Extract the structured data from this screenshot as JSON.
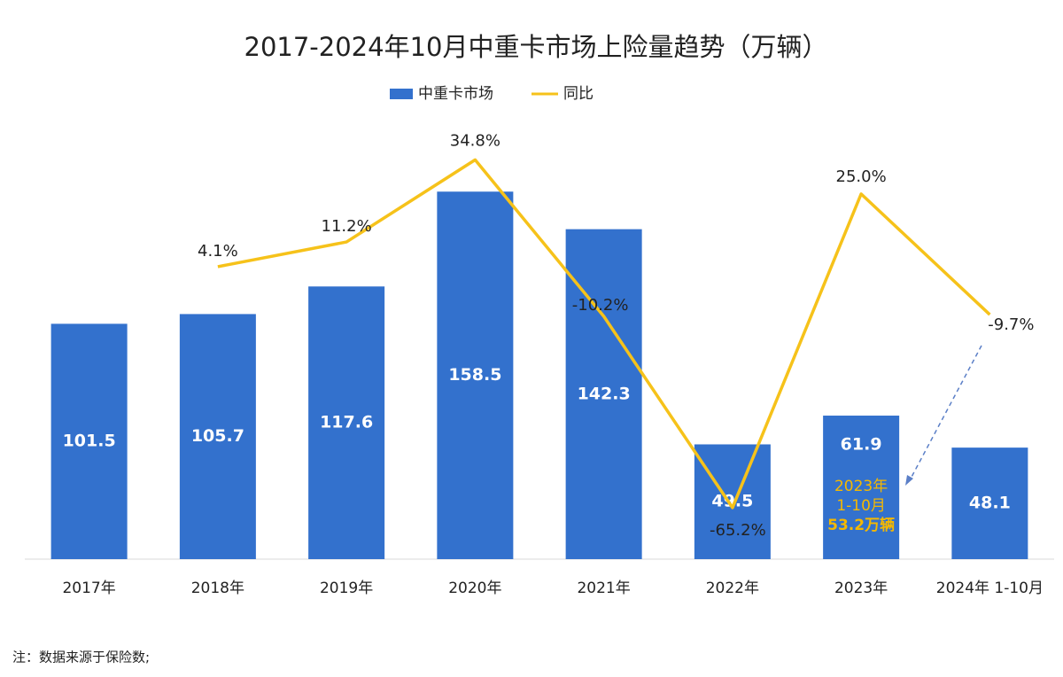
{
  "chart_data": {
    "type": "bar",
    "title": "2017-2024年10月中重卡市场上险量趋势（万辆）",
    "categories": [
      "2017年",
      "2018年",
      "2019年",
      "2020年",
      "2021年",
      "2022年",
      "2023年",
      "2024年 1-10月"
    ],
    "series": [
      {
        "name": "中重卡市场",
        "type": "bar",
        "color": "#3371cd",
        "values": [
          101.5,
          105.7,
          117.6,
          158.5,
          142.3,
          49.5,
          61.9,
          48.1
        ]
      },
      {
        "name": "同比",
        "type": "line",
        "axis": "y2",
        "color": "#f6c21a",
        "values": [
          null,
          4.1,
          11.2,
          34.8,
          -10.2,
          -65.2,
          25.0,
          -9.7
        ],
        "value_labels": [
          null,
          "4.1%",
          "11.2%",
          "34.8%",
          "-10.2%",
          "-65.2%",
          "25.0%",
          "-9.7%"
        ]
      }
    ],
    "ylim": [
      0,
      180
    ],
    "y2lim": [
      -80,
      40
    ],
    "legend": "top",
    "annotation": [
      "2023年",
      "1-10月",
      "53.2万辆"
    ],
    "note": "注：数据来源于保险数;"
  }
}
